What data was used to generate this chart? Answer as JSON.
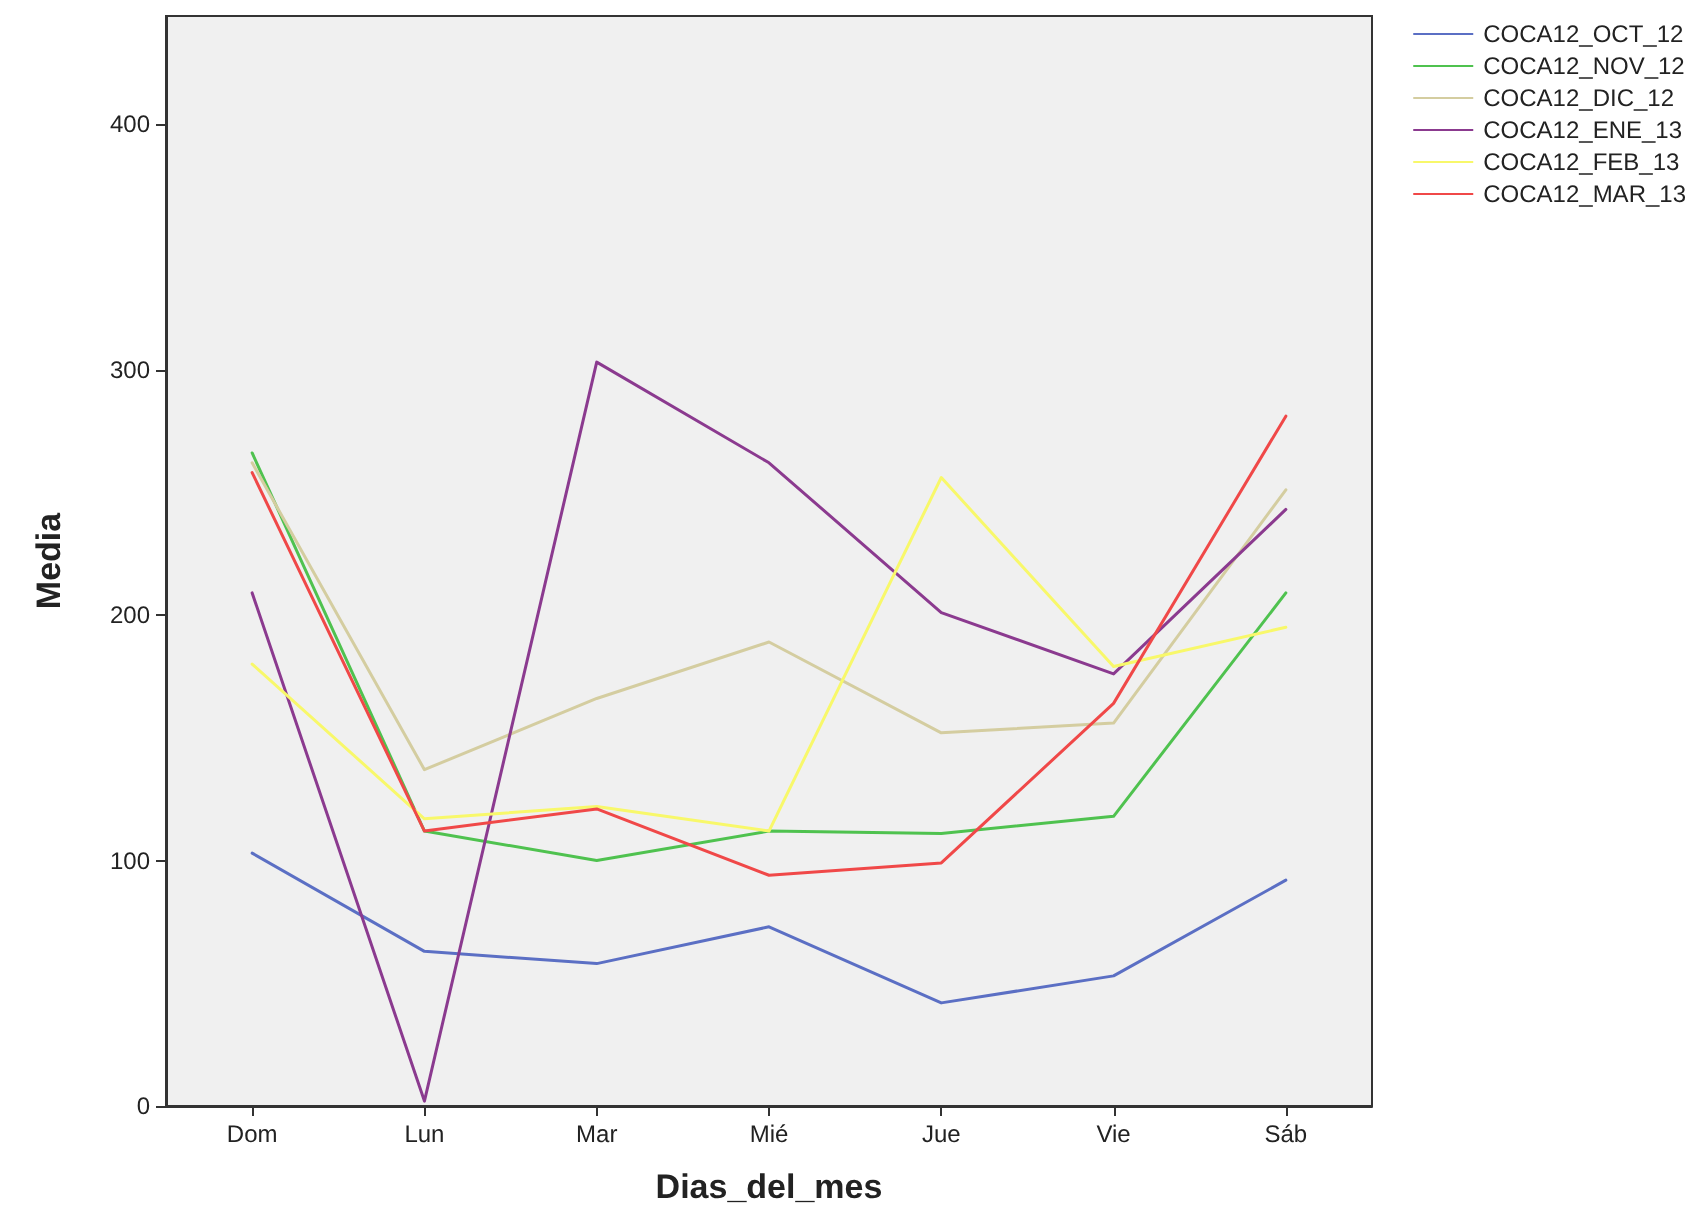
{
  "chart_data": {
    "type": "line",
    "xlabel": "Dias_del_mes",
    "ylabel": "Media",
    "categories": [
      "Dom",
      "Lun",
      "Mar",
      "Mié",
      "Jue",
      "Vie",
      "Sáb"
    ],
    "ylim": [
      0,
      444
    ],
    "yticks": [
      0,
      100,
      200,
      300,
      400
    ],
    "grid": false,
    "legend": "top right",
    "marker": "none",
    "line_style": "solid",
    "series": [
      {
        "name": "COCA12_OCT_12",
        "color": "#5b6fc4",
        "values": [
          103,
          63,
          58,
          73,
          42,
          53,
          92
        ]
      },
      {
        "name": "COCA12_NOV_12",
        "color": "#4fc24f",
        "values": [
          266,
          112,
          100,
          112,
          111,
          118,
          209
        ]
      },
      {
        "name": "COCA12_DIC_12",
        "color": "#d4cda0",
        "values": [
          262,
          137,
          166,
          189,
          152,
          156,
          251
        ]
      },
      {
        "name": "COCA12_ENE_13",
        "color": "#8b3a8f",
        "values": [
          209,
          2,
          303,
          262,
          201,
          176,
          243
        ]
      },
      {
        "name": "COCA12_FEB_13",
        "color": "#f8f86a",
        "values": [
          180,
          117,
          122,
          112,
          256,
          179,
          195
        ]
      },
      {
        "name": "COCA12_MAR_13",
        "color": "#f04848",
        "values": [
          258,
          112,
          121,
          94,
          99,
          164,
          281
        ]
      }
    ]
  }
}
